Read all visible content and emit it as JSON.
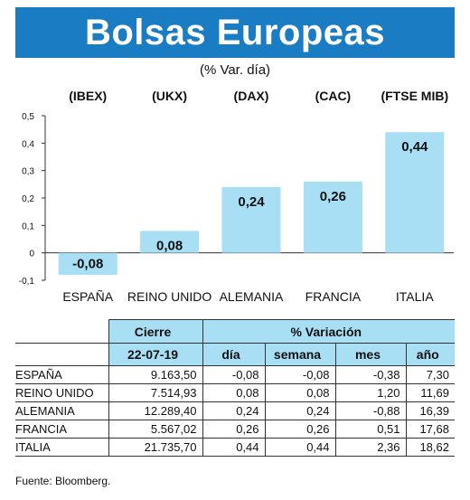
{
  "header": {
    "title": "Bolsas Europeas",
    "subtitle": "(% Var. día)"
  },
  "chart_data": {
    "type": "bar",
    "indices": [
      "(IBEX)",
      "(UKX)",
      "(DAX)",
      "(CAC)",
      "(FTSE MIB)"
    ],
    "categories": [
      "ESPAÑA",
      "REINO UNIDO",
      "ALEMANIA",
      "FRANCIA",
      "ITALIA"
    ],
    "values": [
      -0.08,
      0.08,
      0.24,
      0.26,
      0.44
    ],
    "value_labels": [
      "-0,08",
      "0,08",
      "0,24",
      "0,26",
      "0,44"
    ],
    "yticks": [
      0.5,
      0.4,
      0.3,
      0.2,
      0.1,
      0,
      -0.1
    ],
    "ytick_labels": [
      "0,5",
      "0,4",
      "0,3",
      "0,2",
      "0,1",
      "0",
      "-0,1"
    ],
    "ylim": [
      -0.1,
      0.5
    ],
    "bar_color": "#a8dff5"
  },
  "table": {
    "group_headers": [
      "Cierre",
      "% Variación"
    ],
    "date": "22-07-19",
    "sub_headers": [
      "día",
      "semana",
      "mes",
      "año"
    ],
    "rows": [
      {
        "name": "ESPAÑA",
        "cierre": "9.163,50",
        "dia": "-0,08",
        "semana": "-0,08",
        "mes": "-0,38",
        "ano": "7,30"
      },
      {
        "name": "REINO UNIDO",
        "cierre": "7.514,93",
        "dia": "0,08",
        "semana": "0,08",
        "mes": "1,20",
        "ano": "11,69"
      },
      {
        "name": "ALEMANIA",
        "cierre": "12.289,40",
        "dia": "0,24",
        "semana": "0,24",
        "mes": "-0,88",
        "ano": "16,39"
      },
      {
        "name": "FRANCIA",
        "cierre": "5.567,02",
        "dia": "0,26",
        "semana": "0,26",
        "mes": "0,51",
        "ano": "17,68"
      },
      {
        "name": "ITALIA",
        "cierre": "21.735,70",
        "dia": "0,44",
        "semana": "0,44",
        "mes": "2,36",
        "ano": "18,62"
      }
    ]
  },
  "footer": {
    "source": "Fuente: Bloomberg."
  },
  "colors": {
    "banner": "#1a7dc4",
    "header_fill": "#a8dff5"
  }
}
